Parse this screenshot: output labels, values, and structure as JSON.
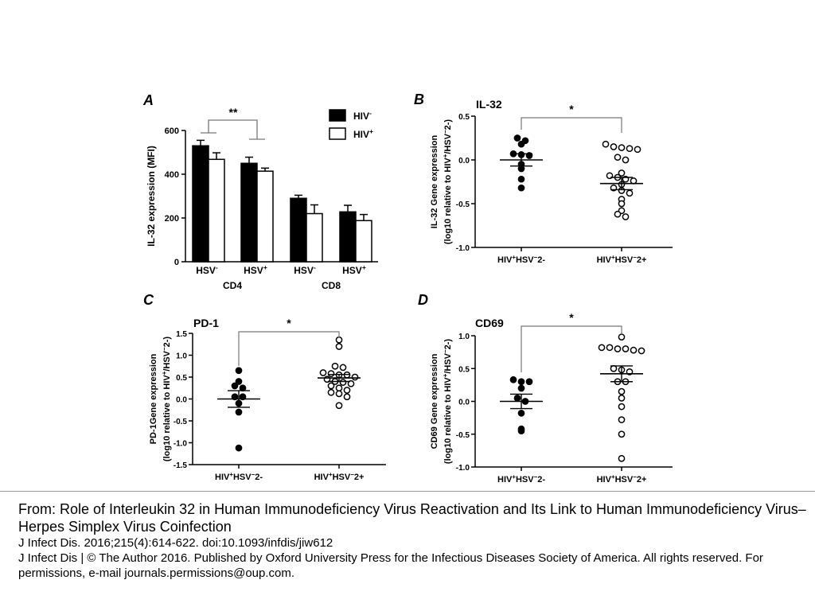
{
  "colors": {
    "hiv_neg_fill": "#000000",
    "hiv_pos_fill": "#ffffff",
    "axis": "#000000",
    "bracket": "#777777"
  },
  "panelA": {
    "letter": "A",
    "chart_data": {
      "type": "bar",
      "ylabel": "IL-32 expression (MFI)",
      "ylim": [
        0,
        600
      ],
      "yticks": [
        0,
        200,
        400,
        600
      ],
      "categories": [
        {
          "base": "HSV",
          "sup": "-"
        },
        {
          "base": "HSV",
          "sup": "+"
        },
        {
          "base": "HSV",
          "sup": "-"
        },
        {
          "base": "HSV",
          "sup": "+"
        }
      ],
      "groups": [
        "CD4",
        "CD8"
      ],
      "legend": {
        "position": "top-right",
        "items": [
          {
            "base": "HIV",
            "sup": "-"
          },
          {
            "base": "HIV",
            "sup": "+"
          }
        ]
      },
      "series": [
        {
          "values": [
            530,
            450,
            290,
            228
          ],
          "errors": [
            25,
            28,
            14,
            30
          ]
        },
        {
          "values": [
            468,
            414,
            220,
            188
          ],
          "errors": [
            30,
            14,
            40,
            28
          ]
        }
      ],
      "significance": {
        "label": "**",
        "from": 0,
        "to": 1
      }
    }
  },
  "panelB": {
    "letter": "B",
    "chart_data": {
      "type": "scatter",
      "title": "IL-32",
      "ylabel_line1": "IL-32 Gene expression",
      "ylabel_line2": {
        "pre": "(log10 relative to HIV",
        "s1": "+",
        "mid": "/HSV",
        "s2": "−",
        "post": "2-)"
      },
      "ylim": [
        -1.0,
        0.5
      ],
      "yticks": [
        "0.5",
        "0.0",
        "-0.5",
        "-1.0"
      ],
      "ytick_values": [
        0.5,
        0.0,
        -0.5,
        -1.0
      ],
      "groups": [
        {
          "label": {
            "base": "HIV",
            "s1": "+",
            "mid": "HSV",
            "s2": "−",
            "post": "2-"
          },
          "filled": true,
          "points": [
            0.25,
            0.22,
            0.18,
            0.07,
            0.06,
            0.05,
            -0.05,
            -0.1,
            -0.22,
            -0.32
          ],
          "mean": 0.0,
          "sem": 0.07
        },
        {
          "label": {
            "base": "HIV",
            "s1": "+",
            "mid": "HSV",
            "s2": "−",
            "post": "2+"
          },
          "filled": false,
          "points": [
            0.18,
            0.15,
            0.14,
            0.13,
            0.12,
            0.03,
            0.0,
            -0.15,
            -0.18,
            -0.2,
            -0.22,
            -0.24,
            -0.28,
            -0.32,
            -0.35,
            -0.38,
            -0.45,
            -0.5,
            -0.58,
            -0.62,
            -0.65
          ],
          "mean": -0.27,
          "sem": 0.07
        }
      ],
      "significance": "*"
    }
  },
  "panelC": {
    "letter": "C",
    "chart_data": {
      "type": "scatter",
      "title": "PD-1",
      "ylabel_line1": "PD-1Gene expression",
      "ylabel_line2": {
        "pre": "(log10 relative to HIV",
        "s1": "+",
        "mid": "/HSV",
        "s2": "−",
        "post": "2-)"
      },
      "ylim": [
        -1.5,
        1.5
      ],
      "yticks": [
        "1.5",
        "1.0",
        "0.5",
        "0.0",
        "-0.5",
        "-1.0",
        "-1.5"
      ],
      "ytick_values": [
        1.5,
        1.0,
        0.5,
        0.0,
        -0.5,
        -1.0,
        -1.5
      ],
      "groups": [
        {
          "label": {
            "base": "HIV",
            "s1": "+",
            "mid": "HSV",
            "s2": "−",
            "post": "2-"
          },
          "filled": true,
          "points": [
            0.65,
            0.4,
            0.3,
            0.25,
            0.05,
            0.05,
            -0.1,
            -0.3,
            -1.12
          ],
          "mean": 0.0,
          "sem": 0.19
        },
        {
          "label": {
            "base": "HIV",
            "s1": "+",
            "mid": "HSV",
            "s2": "−",
            "post": "2+"
          },
          "filled": false,
          "points": [
            1.35,
            1.2,
            0.75,
            0.72,
            0.6,
            0.58,
            0.55,
            0.55,
            0.5,
            0.45,
            0.4,
            0.38,
            0.35,
            0.3,
            0.25,
            0.2,
            0.15,
            0.12,
            0.05,
            -0.15
          ],
          "mean": 0.48,
          "sem": 0.08
        }
      ],
      "significance": "*"
    }
  },
  "panelD": {
    "letter": "D",
    "chart_data": {
      "type": "scatter",
      "title": "CD69",
      "ylabel_line1": "CD69 Gene expression",
      "ylabel_line2": {
        "pre": "(log10 relative to HIV",
        "s1": "+",
        "mid": "/HSV",
        "s2": "−",
        "post": "2-)"
      },
      "ylim": [
        -1.0,
        1.0
      ],
      "yticks": [
        "1.0",
        "0.5",
        "0.0",
        "-0.5",
        "-1.0"
      ],
      "ytick_values": [
        1.0,
        0.5,
        0.0,
        -0.5,
        -1.0
      ],
      "groups": [
        {
          "label": {
            "base": "HIV",
            "s1": "+",
            "mid": "HSV",
            "s2": "−",
            "post": "2-"
          },
          "filled": true,
          "points": [
            0.33,
            0.3,
            0.3,
            0.2,
            0.05,
            0.0,
            -0.18,
            -0.42,
            -0.45
          ],
          "mean": 0.0,
          "sem": 0.11
        },
        {
          "label": {
            "base": "HIV",
            "s1": "+",
            "mid": "HSV",
            "s2": "−",
            "post": "2+"
          },
          "filled": false,
          "points": [
            0.98,
            0.82,
            0.82,
            0.8,
            0.8,
            0.78,
            0.77,
            0.5,
            0.48,
            0.45,
            0.3,
            0.3,
            0.15,
            0.05,
            -0.08,
            -0.28,
            -0.5,
            -0.87
          ],
          "mean": 0.42,
          "sem": 0.12
        }
      ],
      "significance": "*"
    }
  },
  "caption": {
    "title": "From: Role of Interleukin 32 in Human Immunodeficiency Virus Reactivation and Its Link to Human Immunodeficiency Virus–Herpes Simplex Virus Coinfection",
    "citation": "J Infect Dis. 2016;215(4):614-622. doi:10.1093/infdis/jiw612",
    "copyright": "J Infect Dis | © The Author 2016. Published by Oxford University Press for the Infectious Diseases Society of America. All rights reserved. For permissions, e-mail journals.permissions@oup.com."
  }
}
